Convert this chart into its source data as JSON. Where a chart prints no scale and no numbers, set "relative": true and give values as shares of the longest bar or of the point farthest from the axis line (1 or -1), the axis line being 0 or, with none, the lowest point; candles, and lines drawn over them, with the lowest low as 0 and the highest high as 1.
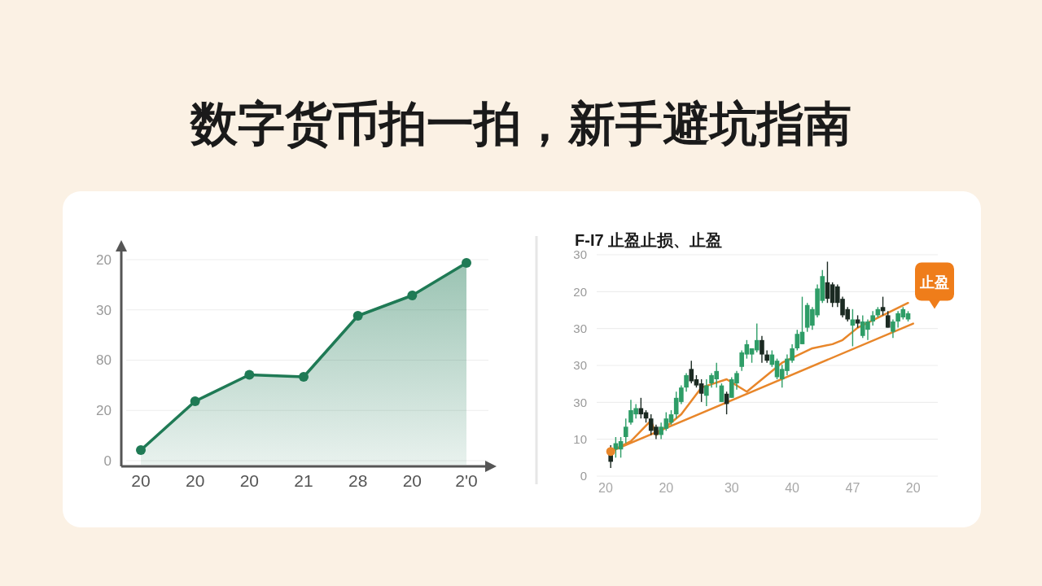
{
  "chart_data": [
    {
      "type": "area",
      "title": "数字货币拍一拍，新手避坑指南",
      "relative": true,
      "categories": [
        "20",
        "20",
        "20",
        "21",
        "28",
        "20",
        "2'0"
      ],
      "y_categories": [
        "20",
        "30",
        "80",
        "20",
        "0"
      ],
      "values": [
        0.08,
        0.32,
        0.45,
        0.44,
        0.74,
        0.84,
        1
      ],
      "color": "#1f7a55",
      "marker": "circle",
      "grid": "y"
    },
    {
      "type": "candlestick",
      "title": "F-I7  止盈止损、止盈",
      "relative": true,
      "categories": [
        "20",
        null,
        null,
        null,
        null,
        null,
        null,
        null,
        null,
        null,
        null,
        null,
        "20",
        null,
        null,
        null,
        null,
        null,
        null,
        null,
        null,
        null,
        null,
        null,
        null,
        "30",
        null,
        null,
        null,
        null,
        null,
        null,
        null,
        null,
        null,
        null,
        null,
        "40",
        null,
        null,
        null,
        null,
        null,
        null,
        null,
        null,
        null,
        null,
        null,
        "47",
        null,
        null,
        null,
        null,
        null,
        null,
        null,
        null,
        null,
        null,
        null,
        "20"
      ],
      "y_categories": [
        "30",
        "20",
        "30",
        "30",
        "30",
        "10",
        "0"
      ],
      "ohlc": [
        null,
        [
          0.09,
          0.11,
          0,
          0.03
        ],
        [
          0.09,
          0.15,
          0.05,
          0.12
        ],
        [
          0.09,
          0.15,
          0.05,
          0.13
        ],
        [
          0.15,
          0.24,
          0.12,
          0.2
        ],
        [
          0.22,
          0.33,
          0.21,
          0.28
        ],
        [
          0.26,
          0.31,
          0.24,
          0.29
        ],
        [
          0.29,
          0.34,
          0.24,
          0.26
        ],
        [
          0.27,
          0.28,
          0.22,
          0.24
        ],
        [
          0.24,
          0.26,
          0.16,
          0.18
        ],
        [
          0.2,
          0.21,
          0.14,
          0.16
        ],
        [
          0.16,
          0.22,
          0.14,
          0.2
        ],
        [
          0.19,
          0.27,
          0.18,
          0.24
        ],
        [
          0.22,
          0.28,
          0.21,
          0.26
        ],
        [
          0.26,
          0.37,
          0.24,
          0.34
        ],
        [
          0.32,
          0.4,
          0.31,
          0.39
        ],
        [
          0.39,
          0.46,
          0.37,
          0.45
        ],
        [
          0.48,
          0.52,
          0.41,
          0.42
        ],
        [
          0.43,
          0.45,
          0.39,
          0.4
        ],
        [
          0.41,
          0.43,
          0.32,
          0.36
        ],
        [
          0.35,
          0.43,
          0.3,
          0.4
        ],
        [
          0.41,
          0.46,
          0.39,
          0.45
        ],
        [
          0.43,
          0.51,
          0.39,
          0.47
        ],
        [
          0.32,
          0.41,
          0.32,
          0.4
        ],
        [
          0.36,
          0.37,
          0.26,
          0.31
        ],
        [
          0.34,
          0.44,
          0.34,
          0.43
        ],
        [
          0.41,
          0.47,
          0.38,
          0.46
        ],
        [
          0.49,
          0.57,
          0.47,
          0.56
        ],
        [
          0.55,
          0.62,
          0.53,
          0.6
        ],
        [
          0.55,
          0.58,
          0.51,
          0.58
        ],
        [
          0.57,
          0.7,
          0.56,
          0.62
        ],
        [
          0.62,
          0.64,
          0.51,
          0.55
        ],
        [
          0.55,
          0.57,
          0.51,
          0.52
        ],
        [
          0.5,
          0.57,
          0.49,
          0.55
        ],
        [
          0.44,
          0.53,
          0.43,
          0.52
        ],
        [
          0.43,
          0.5,
          0.39,
          0.48
        ],
        [
          0.47,
          0.55,
          0.45,
          0.53
        ],
        [
          0.52,
          0.6,
          0.51,
          0.58
        ],
        [
          0.58,
          0.67,
          0.57,
          0.65
        ],
        [
          0.6,
          0.83,
          0.6,
          0.66
        ],
        [
          0.68,
          0.8,
          0.66,
          0.79
        ],
        [
          0.69,
          0.78,
          0.67,
          0.77
        ],
        [
          0.74,
          0.89,
          0.73,
          0.87
        ],
        [
          0.81,
          0.96,
          0.8,
          0.93
        ],
        [
          0.9,
          1,
          0.8,
          0.82
        ],
        [
          0.89,
          0.9,
          0.78,
          0.8
        ],
        [
          0.88,
          0.89,
          0.78,
          0.8
        ],
        [
          0.82,
          0.83,
          0.73,
          0.74
        ],
        [
          0.77,
          0.78,
          0.71,
          0.72
        ],
        [
          0.69,
          0.77,
          0.59,
          0.72
        ],
        [
          0.72,
          0.74,
          0.68,
          0.7
        ],
        [
          0.64,
          0.74,
          0.63,
          0.71
        ],
        [
          0.67,
          0.72,
          0.62,
          0.71
        ],
        [
          0.71,
          0.76,
          0.69,
          0.74
        ],
        [
          0.74,
          0.78,
          0.73,
          0.77
        ],
        [
          0.78,
          0.83,
          0.74,
          0.76
        ],
        [
          0.74,
          0.76,
          0.68,
          0.68
        ],
        [
          0.66,
          0.72,
          0.63,
          0.71
        ],
        [
          0.71,
          0.76,
          0.68,
          0.75
        ],
        [
          0.73,
          0.78,
          0.72,
          0.77
        ],
        [
          0.72,
          0.76,
          0.71,
          0.75
        ],
        null
      ],
      "series": [
        {
          "type": "line",
          "color": "#e8862a",
          "values": [
            null,
            0.08,
            null,
            null,
            null,
            null,
            null,
            null,
            null,
            null,
            null,
            null,
            null,
            null,
            null,
            null,
            null,
            null,
            null,
            null,
            null,
            null,
            null,
            null,
            null,
            null,
            null,
            null,
            null,
            null,
            null,
            null,
            null,
            null,
            null,
            null,
            null,
            null,
            null,
            null,
            null,
            null,
            null,
            null,
            null,
            null,
            null,
            null,
            null,
            null,
            null,
            null,
            null,
            null,
            null,
            null,
            null,
            null,
            null,
            null,
            null,
            0.7
          ]
        },
        {
          "type": "line",
          "color": "#e8862a",
          "values": [
            null,
            0.08,
            null,
            null,
            null,
            0.13,
            null,
            null,
            null,
            0.23,
            0.16,
            null,
            null,
            null,
            null,
            0.26,
            null,
            null,
            null,
            0.39,
            null,
            null,
            null,
            null,
            0.43,
            null,
            null,
            null,
            0.37,
            null,
            null,
            null,
            null,
            null,
            null,
            0.51,
            null,
            null,
            null,
            null,
            null,
            0.58,
            null,
            null,
            null,
            0.6,
            null,
            0.62,
            null,
            null,
            0.68,
            null,
            null,
            null,
            null,
            null,
            null,
            null,
            null,
            null,
            0.8,
            null
          ]
        },
        {
          "type": "scatter",
          "color": "#e8862a",
          "values": [
            null,
            0.08,
            null,
            null,
            null,
            null,
            null,
            null,
            null,
            null,
            null,
            null,
            null,
            null,
            null,
            null,
            null,
            null,
            null,
            null,
            null,
            null,
            null,
            null,
            null,
            null,
            null,
            null,
            null,
            null,
            null,
            null,
            null,
            null,
            null,
            null,
            null,
            null,
            null,
            null,
            null,
            null,
            null,
            null,
            null,
            null,
            null,
            null,
            null,
            null,
            null,
            null,
            null,
            null,
            null,
            null,
            null,
            null,
            null,
            null,
            null,
            null
          ]
        }
      ],
      "grid": "y",
      "annotations": [
        "止盈"
      ]
    }
  ]
}
